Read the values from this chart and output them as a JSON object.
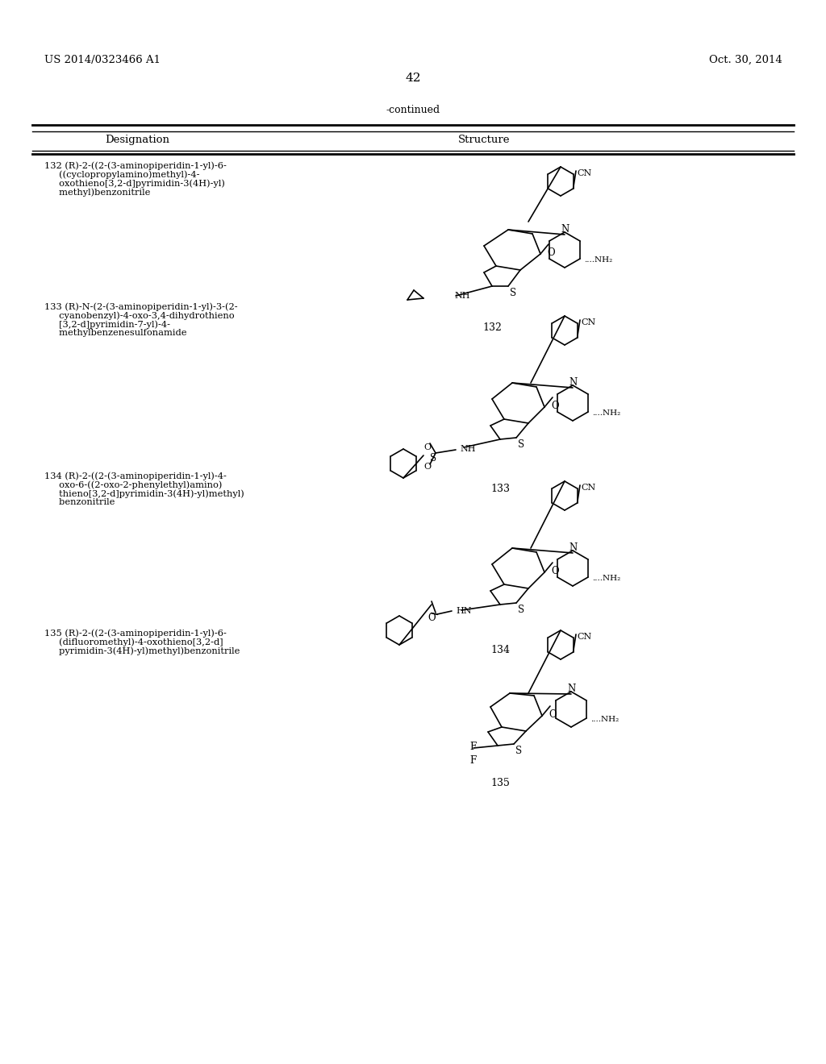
{
  "page_number": "42",
  "patent_number": "US 2014/0323466 A1",
  "patent_date": "Oct. 30, 2014",
  "continued_label": "-continued",
  "col_header_left": "Designation",
  "col_header_right": "Structure",
  "compounds": [
    {
      "number": "132",
      "designation": "132 (R)-2-((2-(3-aminopiperidin-1-yl)-6-\n     ((cyclopropylamino)methyl)-4-\n     oxothieno[3,2-d]pyrimidin-3(4H)-yl)\n     methyl)benzonitrile",
      "label": "132"
    },
    {
      "number": "133",
      "designation": "133 (R)-N-(2-(3-aminopiperidin-1-yl)-3-(2-\n     cyanobenzyl)-4-oxo-3,4-dihydrothieno\n     [3,2-d]pyrimidin-7-yl)-4-\n     methylbenzenesulfonamide",
      "label": "133"
    },
    {
      "number": "134",
      "designation": "134 (R)-2-((2-(3-aminopiperidin-1-yl)-4-\n     oxo-6-((2-oxo-2-phenylethyl)amino)\n     thieno[3,2-d]pyrimidin-3(4H)-yl)methyl)\n     benzonitrile",
      "label": "134"
    },
    {
      "number": "135",
      "designation": "135 (R)-2-((2-(3-aminopiperidin-1-yl)-6-\n     (difluoromethyl)-4-oxothieno[3,2-d]\n     pyrimidin-3(4H)-yl)methyl)benzonitrile",
      "label": "135"
    }
  ],
  "bg_color": "#ffffff",
  "text_color": "#000000",
  "line_color": "#000000"
}
